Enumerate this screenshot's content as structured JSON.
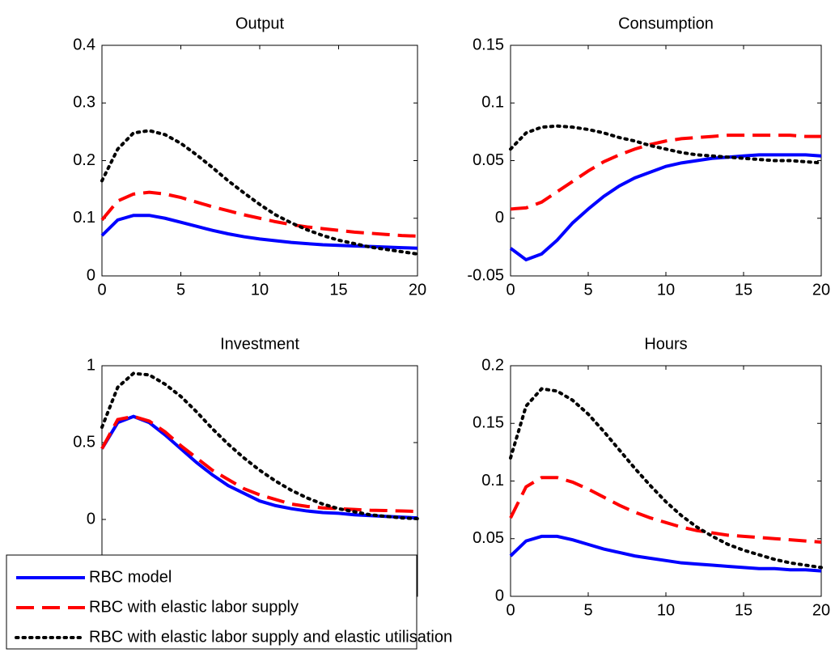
{
  "chart_data": [
    {
      "type": "line",
      "title": "Output",
      "x": [
        0,
        1,
        2,
        3,
        4,
        5,
        6,
        7,
        8,
        9,
        10,
        11,
        12,
        13,
        14,
        15,
        16,
        17,
        18,
        19,
        20
      ],
      "xlim": [
        0,
        20
      ],
      "xticks": [
        0,
        5,
        10,
        15,
        20
      ],
      "ylim": [
        0,
        0.4
      ],
      "yticks": [
        0,
        0.1,
        0.2,
        0.3,
        0.4
      ],
      "series": [
        {
          "name": "RBC model",
          "color": "#0000ff",
          "linestyle": "solid",
          "values": [
            0.07,
            0.097,
            0.105,
            0.105,
            0.1,
            0.093,
            0.086,
            0.079,
            0.073,
            0.068,
            0.064,
            0.061,
            0.058,
            0.056,
            0.054,
            0.053,
            0.052,
            0.051,
            0.05,
            0.049,
            0.048
          ]
        },
        {
          "name": "RBC with elastic labor supply",
          "color": "#ff0000",
          "linestyle": "dashed",
          "values": [
            0.097,
            0.13,
            0.142,
            0.145,
            0.142,
            0.136,
            0.128,
            0.12,
            0.113,
            0.106,
            0.1,
            0.094,
            0.089,
            0.085,
            0.082,
            0.079,
            0.076,
            0.074,
            0.072,
            0.07,
            0.069
          ]
        },
        {
          "name": "RBC with elastic labor supply and elastic utilisation",
          "color": "#000000",
          "linestyle": "dotted",
          "values": [
            0.165,
            0.22,
            0.248,
            0.252,
            0.245,
            0.23,
            0.21,
            0.188,
            0.165,
            0.144,
            0.124,
            0.106,
            0.092,
            0.08,
            0.07,
            0.062,
            0.056,
            0.05,
            0.046,
            0.042,
            0.038
          ]
        }
      ]
    },
    {
      "type": "line",
      "title": "Consumption",
      "x": [
        0,
        1,
        2,
        3,
        4,
        5,
        6,
        7,
        8,
        9,
        10,
        11,
        12,
        13,
        14,
        15,
        16,
        17,
        18,
        19,
        20
      ],
      "xlim": [
        0,
        20
      ],
      "xticks": [
        0,
        5,
        10,
        15,
        20
      ],
      "ylim": [
        -0.05,
        0.15
      ],
      "yticks": [
        -0.05,
        0,
        0.05,
        0.1,
        0.15
      ],
      "series": [
        {
          "color": "#0000ff",
          "linestyle": "solid",
          "values": [
            -0.026,
            -0.036,
            -0.031,
            -0.019,
            -0.004,
            0.008,
            0.019,
            0.028,
            0.035,
            0.04,
            0.045,
            0.048,
            0.05,
            0.052,
            0.053,
            0.054,
            0.055,
            0.055,
            0.055,
            0.055,
            0.054
          ]
        },
        {
          "color": "#ff0000",
          "linestyle": "dashed",
          "values": [
            0.008,
            0.009,
            0.014,
            0.023,
            0.032,
            0.041,
            0.049,
            0.055,
            0.06,
            0.064,
            0.067,
            0.069,
            0.07,
            0.071,
            0.072,
            0.072,
            0.072,
            0.072,
            0.072,
            0.071,
            0.071
          ]
        },
        {
          "color": "#000000",
          "linestyle": "dotted",
          "values": [
            0.06,
            0.074,
            0.079,
            0.08,
            0.079,
            0.077,
            0.074,
            0.07,
            0.067,
            0.063,
            0.06,
            0.057,
            0.055,
            0.054,
            0.053,
            0.052,
            0.051,
            0.05,
            0.05,
            0.049,
            0.048
          ]
        }
      ]
    },
    {
      "type": "line",
      "title": "Investment",
      "x": [
        0,
        1,
        2,
        3,
        4,
        5,
        6,
        7,
        8,
        9,
        10,
        11,
        12,
        13,
        14,
        15,
        16,
        17,
        18,
        19,
        20
      ],
      "xlim": [
        0,
        20
      ],
      "ylim": [
        -0.5,
        1
      ],
      "yticks": [
        0,
        0.5,
        1
      ],
      "series": [
        {
          "color": "#0000ff",
          "linestyle": "solid",
          "values": [
            0.46,
            0.63,
            0.67,
            0.63,
            0.55,
            0.46,
            0.37,
            0.29,
            0.22,
            0.17,
            0.12,
            0.09,
            0.07,
            0.055,
            0.045,
            0.04,
            0.03,
            0.025,
            0.02,
            0.015,
            0.01
          ]
        },
        {
          "color": "#ff0000",
          "linestyle": "dashed",
          "values": [
            0.46,
            0.65,
            0.67,
            0.64,
            0.57,
            0.48,
            0.4,
            0.32,
            0.26,
            0.2,
            0.16,
            0.13,
            0.1,
            0.085,
            0.075,
            0.07,
            0.065,
            0.06,
            0.058,
            0.055,
            0.052
          ]
        },
        {
          "color": "#000000",
          "linestyle": "dotted",
          "values": [
            0.6,
            0.86,
            0.95,
            0.94,
            0.88,
            0.8,
            0.7,
            0.59,
            0.49,
            0.4,
            0.32,
            0.25,
            0.19,
            0.14,
            0.1,
            0.07,
            0.05,
            0.03,
            0.02,
            0.01,
            0.005
          ]
        }
      ]
    },
    {
      "type": "line",
      "title": "Hours",
      "x": [
        0,
        1,
        2,
        3,
        4,
        5,
        6,
        7,
        8,
        9,
        10,
        11,
        12,
        13,
        14,
        15,
        16,
        17,
        18,
        19,
        20
      ],
      "xlim": [
        0,
        20
      ],
      "xticks": [
        0,
        5,
        10,
        15,
        20
      ],
      "ylim": [
        0,
        0.2
      ],
      "yticks": [
        0,
        0.05,
        0.1,
        0.15,
        0.2
      ],
      "series": [
        {
          "color": "#0000ff",
          "linestyle": "solid",
          "values": [
            0.035,
            0.048,
            0.052,
            0.052,
            0.049,
            0.045,
            0.041,
            0.038,
            0.035,
            0.033,
            0.031,
            0.029,
            0.028,
            0.027,
            0.026,
            0.025,
            0.024,
            0.024,
            0.023,
            0.023,
            0.022
          ]
        },
        {
          "color": "#ff0000",
          "linestyle": "dashed",
          "values": [
            0.068,
            0.095,
            0.103,
            0.103,
            0.099,
            0.093,
            0.086,
            0.079,
            0.073,
            0.068,
            0.064,
            0.06,
            0.057,
            0.055,
            0.053,
            0.052,
            0.051,
            0.05,
            0.049,
            0.048,
            0.047
          ]
        },
        {
          "color": "#000000",
          "linestyle": "dotted",
          "values": [
            0.12,
            0.165,
            0.18,
            0.178,
            0.17,
            0.158,
            0.143,
            0.127,
            0.111,
            0.096,
            0.082,
            0.07,
            0.06,
            0.052,
            0.045,
            0.04,
            0.036,
            0.032,
            0.029,
            0.027,
            0.025
          ]
        }
      ]
    }
  ]
}
